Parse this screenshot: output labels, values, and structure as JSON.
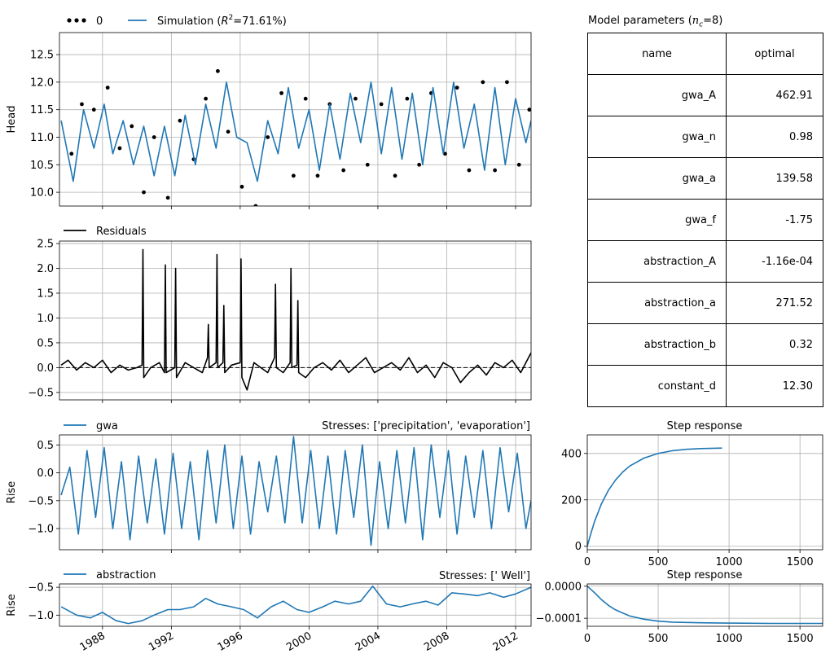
{
  "colors": {
    "simulation": "#1f77b4",
    "observed": "#000000",
    "residuals": "#000000",
    "grid": "#b0b0b0"
  },
  "chart_data": [
    {
      "id": "head",
      "type": "line",
      "ylabel": "Head",
      "ylim": [
        9.75,
        12.9
      ],
      "yticks": [
        10.0,
        10.5,
        11.0,
        11.5,
        12.0,
        12.5
      ],
      "x_range_years": [
        1985.5,
        2012.9
      ],
      "legend": {
        "placement": "top-left-outside",
        "entries": [
          "0",
          "Simulation (R²=71.61%)"
        ]
      },
      "series": [
        {
          "name": "0",
          "style": "scatter",
          "x": [
            1986.2,
            1986.8,
            1987.5,
            1988.3,
            1989.0,
            1989.7,
            1990.4,
            1991.0,
            1991.8,
            1992.5,
            1993.3,
            1994.0,
            1994.7,
            1995.3,
            1996.1,
            1996.9,
            1997.6,
            1998.4,
            1999.1,
            1999.8,
            2000.5,
            2001.2,
            2002.0,
            2002.7,
            2003.4,
            2004.2,
            2005.0,
            2005.7,
            2006.4,
            2007.1,
            2007.9,
            2008.6,
            2009.3,
            2010.1,
            2010.8,
            2011.5,
            2012.2,
            2012.8
          ],
          "y": [
            10.7,
            11.6,
            11.5,
            11.9,
            10.8,
            11.2,
            10.0,
            11.0,
            9.9,
            11.3,
            10.6,
            11.7,
            12.2,
            11.1,
            10.1,
            9.75,
            11.0,
            11.8,
            10.3,
            11.7,
            10.3,
            11.6,
            10.4,
            11.7,
            10.5,
            11.6,
            10.3,
            11.7,
            10.5,
            11.8,
            10.7,
            11.9,
            10.4,
            12.0,
            10.4,
            12.0,
            10.5,
            11.5
          ]
        },
        {
          "name": "Simulation (R²=71.61%)",
          "style": "line",
          "x": [
            1985.6,
            1986.3,
            1986.9,
            1987.5,
            1988.1,
            1988.6,
            1989.2,
            1989.8,
            1990.4,
            1991.0,
            1991.6,
            1992.2,
            1992.8,
            1993.4,
            1994.0,
            1994.6,
            1995.2,
            1995.8,
            1996.4,
            1997.0,
            1997.6,
            1998.2,
            1998.8,
            1999.4,
            2000.0,
            2000.6,
            2001.2,
            2001.8,
            2002.4,
            2003.0,
            2003.6,
            2004.2,
            2004.8,
            2005.4,
            2006.0,
            2006.6,
            2007.2,
            2007.8,
            2008.4,
            2009.0,
            2009.6,
            2010.2,
            2010.8,
            2011.4,
            2012.0,
            2012.6,
            2012.9
          ],
          "y": [
            11.3,
            10.2,
            11.5,
            10.8,
            11.6,
            10.7,
            11.3,
            10.5,
            11.2,
            10.3,
            11.2,
            10.3,
            11.4,
            10.5,
            11.6,
            10.8,
            12.0,
            11.0,
            10.9,
            10.2,
            11.3,
            10.7,
            11.9,
            10.8,
            11.5,
            10.4,
            11.6,
            10.6,
            11.8,
            10.9,
            12.0,
            10.7,
            11.9,
            10.6,
            11.8,
            10.5,
            11.9,
            10.7,
            12.0,
            10.8,
            11.6,
            10.4,
            11.9,
            10.5,
            11.7,
            10.9,
            11.3
          ]
        }
      ]
    },
    {
      "id": "residuals",
      "type": "line",
      "ylim": [
        -0.65,
        2.55
      ],
      "yticks": [
        -0.5,
        0.0,
        0.5,
        1.0,
        1.5,
        2.0,
        2.5
      ],
      "legend": {
        "placement": "top-left-outside",
        "entries": [
          "Residuals"
        ]
      },
      "series": [
        {
          "name": "Residuals",
          "x": [
            1985.6,
            1986.0,
            1986.5,
            1987.0,
            1987.5,
            1988.0,
            1988.5,
            1989.0,
            1989.5,
            1990.0,
            1990.3,
            1990.35,
            1990.4,
            1990.8,
            1991.3,
            1991.6,
            1991.65,
            1991.7,
            1992.2,
            1992.25,
            1992.3,
            1992.8,
            1993.3,
            1993.8,
            1994.1,
            1994.15,
            1994.2,
            1994.6,
            1994.65,
            1994.7,
            1995.0,
            1995.05,
            1995.1,
            1995.5,
            1996.0,
            1996.05,
            1996.1,
            1996.4,
            1996.8,
            1997.2,
            1997.6,
            1998.0,
            1998.05,
            1998.1,
            1998.5,
            1998.9,
            1998.95,
            1999.0,
            1999.3,
            1999.35,
            1999.4,
            1999.8,
            2000.3,
            2000.8,
            2001.3,
            2001.8,
            2002.3,
            2002.8,
            2003.3,
            2003.8,
            2004.3,
            2004.8,
            2005.3,
            2005.8,
            2006.3,
            2006.8,
            2007.3,
            2007.8,
            2008.3,
            2008.8,
            2009.3,
            2009.8,
            2010.3,
            2010.8,
            2011.3,
            2011.8,
            2012.3,
            2012.9
          ],
          "y": [
            0.05,
            0.15,
            -0.05,
            0.1,
            0.0,
            0.15,
            -0.1,
            0.05,
            -0.05,
            0.0,
            0.05,
            2.38,
            -0.2,
            0.0,
            0.1,
            -0.1,
            2.07,
            -0.1,
            0.0,
            2.0,
            -0.2,
            0.1,
            0.0,
            -0.1,
            0.2,
            0.87,
            0.0,
            0.1,
            2.28,
            0.0,
            0.1,
            1.25,
            -0.1,
            0.05,
            0.1,
            2.19,
            -0.2,
            -0.45,
            0.1,
            0.0,
            -0.1,
            0.2,
            1.68,
            0.0,
            -0.1,
            0.1,
            2.0,
            0.0,
            0.05,
            1.35,
            -0.1,
            -0.2,
            0.0,
            0.1,
            -0.05,
            0.15,
            -0.1,
            0.05,
            0.2,
            -0.1,
            0.0,
            0.1,
            -0.05,
            0.2,
            -0.1,
            0.05,
            -0.2,
            0.1,
            0.0,
            -0.3,
            -0.1,
            0.05,
            -0.15,
            0.1,
            0.0,
            0.15,
            -0.1,
            0.3
          ]
        },
        {
          "name": "",
          "style": "dashed",
          "x": [
            1985.5,
            2012.9
          ],
          "y": [
            0.0,
            0.0
          ]
        }
      ]
    },
    {
      "id": "gwa",
      "type": "line",
      "ylabel": "Rise",
      "title_right": "Stresses: ['precipitation', 'evaporation']",
      "ylim": [
        -1.38,
        0.68
      ],
      "yticks": [
        -1.0,
        -0.5,
        0.0,
        0.5
      ],
      "legend": {
        "placement": "top-left-outside",
        "entries": [
          "gwa"
        ]
      },
      "series": [
        {
          "name": "gwa",
          "x": [
            1985.6,
            1986.1,
            1986.6,
            1987.1,
            1987.6,
            1988.1,
            1988.6,
            1989.1,
            1989.6,
            1990.1,
            1990.6,
            1991.1,
            1991.6,
            1992.1,
            1992.6,
            1993.1,
            1993.6,
            1994.1,
            1994.6,
            1995.1,
            1995.6,
            1996.1,
            1996.6,
            1997.1,
            1997.6,
            1998.1,
            1998.6,
            1999.1,
            1999.6,
            2000.1,
            2000.6,
            2001.1,
            2001.6,
            2002.1,
            2002.6,
            2003.1,
            2003.6,
            2004.1,
            2004.6,
            2005.1,
            2005.6,
            2006.1,
            2006.6,
            2007.1,
            2007.6,
            2008.1,
            2008.6,
            2009.1,
            2009.6,
            2010.1,
            2010.6,
            2011.1,
            2011.6,
            2012.1,
            2012.6,
            2012.9
          ],
          "y": [
            -0.4,
            0.1,
            -1.1,
            0.4,
            -0.8,
            0.45,
            -1.0,
            0.2,
            -1.2,
            0.3,
            -0.9,
            0.25,
            -1.1,
            0.35,
            -1.0,
            0.2,
            -1.2,
            0.4,
            -0.9,
            0.5,
            -1.0,
            0.3,
            -1.1,
            0.2,
            -0.7,
            0.3,
            -0.9,
            0.65,
            -0.9,
            0.4,
            -1.0,
            0.3,
            -1.1,
            0.4,
            -0.8,
            0.5,
            -1.3,
            0.2,
            -1.0,
            0.4,
            -0.9,
            0.45,
            -1.2,
            0.5,
            -0.8,
            0.4,
            -1.1,
            0.3,
            -0.8,
            0.4,
            -1.0,
            0.45,
            -0.7,
            0.35,
            -1.0,
            -0.5
          ]
        }
      ]
    },
    {
      "id": "abstraction",
      "type": "line",
      "ylabel": "Rise",
      "title_right": "Stresses: [' Well']",
      "ylim": [
        -1.2,
        -0.44
      ],
      "yticks": [
        -1.0,
        -0.5
      ],
      "legend": {
        "placement": "top-left-outside",
        "entries": [
          "abstraction"
        ]
      },
      "xticks": [
        "1988",
        "1992",
        "1996",
        "2000",
        "2004",
        "2008",
        "2012"
      ],
      "xtick_years": [
        1988,
        1992,
        1996,
        2000,
        2004,
        2008,
        2012
      ],
      "series": [
        {
          "name": "abstraction",
          "x": [
            1985.6,
            1986.5,
            1987.3,
            1988.0,
            1988.8,
            1989.5,
            1990.3,
            1991.0,
            1991.8,
            1992.5,
            1993.3,
            1994.0,
            1994.7,
            1995.5,
            1996.2,
            1997.0,
            1997.8,
            1998.5,
            1999.3,
            2000.0,
            2000.8,
            2001.5,
            2002.3,
            2003.0,
            2003.7,
            2004.5,
            2005.3,
            2006.0,
            2006.8,
            2007.5,
            2008.3,
            2009.0,
            2009.8,
            2010.5,
            2011.3,
            2012.0,
            2012.9
          ],
          "y": [
            -0.85,
            -1.0,
            -1.05,
            -0.95,
            -1.1,
            -1.15,
            -1.1,
            -1.0,
            -0.9,
            -0.9,
            -0.85,
            -0.7,
            -0.8,
            -0.85,
            -0.9,
            -1.05,
            -0.85,
            -0.75,
            -0.9,
            -0.95,
            -0.85,
            -0.75,
            -0.8,
            -0.75,
            -0.48,
            -0.8,
            -0.85,
            -0.8,
            -0.75,
            -0.82,
            -0.6,
            -0.62,
            -0.65,
            -0.6,
            -0.68,
            -0.62,
            -0.5
          ]
        }
      ]
    },
    {
      "id": "step_gwa",
      "type": "line",
      "title": "Step response",
      "xlim": [
        0,
        1660
      ],
      "ylim": [
        -15,
        480
      ],
      "xticks": [
        0,
        500,
        1000,
        1500
      ],
      "yticks": [
        0,
        200,
        400
      ],
      "series": [
        {
          "name": "",
          "x": [
            0,
            25,
            50,
            100,
            150,
            200,
            250,
            300,
            400,
            500,
            600,
            700,
            800,
            950
          ],
          "y": [
            0,
            55,
            104,
            183,
            242,
            286,
            320,
            346,
            380,
            400,
            412,
            418,
            421,
            423
          ]
        }
      ]
    },
    {
      "id": "step_abstraction",
      "type": "line",
      "title": "Step response",
      "xlim": [
        0,
        1660
      ],
      "ylim": [
        -0.000125,
        7e-06
      ],
      "xticks": [
        0,
        500,
        1000,
        1500
      ],
      "yticks": [
        -0.0001,
        0.0
      ],
      "ytick_labels": [
        "−0.0001",
        "0.0000"
      ],
      "series": [
        {
          "name": "",
          "x": [
            0,
            25,
            50,
            100,
            150,
            200,
            300,
            400,
            500,
            600,
            800,
            1000,
            1300,
            1660
          ],
          "y": [
            0.0,
            -1e-05,
            -2e-05,
            -4.2e-05,
            -6e-05,
            -7.4e-05,
            -9.3e-05,
            -0.000103,
            -0.000109,
            -0.000112,
            -0.000114,
            -0.000115,
            -0.000116,
            -0.000116
          ]
        }
      ]
    }
  ],
  "head_legend": {
    "obs_label": "0",
    "sim_label_prefix": "Simulation (",
    "sim_label_r2": "R",
    "sim_label_suffix": "=71.61%)"
  },
  "params_table": {
    "title_prefix": "Model parameters (",
    "title_var": "n",
    "title_sub": "c",
    "title_suffix": "=8)",
    "columns": [
      "name",
      "optimal"
    ],
    "rows": [
      [
        "gwa_A",
        "462.91"
      ],
      [
        "gwa_n",
        "0.98"
      ],
      [
        "gwa_a",
        "139.58"
      ],
      [
        "gwa_f",
        "-1.75"
      ],
      [
        "abstraction_A",
        "-1.16e-04"
      ],
      [
        "abstraction_a",
        "271.52"
      ],
      [
        "abstraction_b",
        "0.32"
      ],
      [
        "constant_d",
        "12.30"
      ]
    ]
  }
}
